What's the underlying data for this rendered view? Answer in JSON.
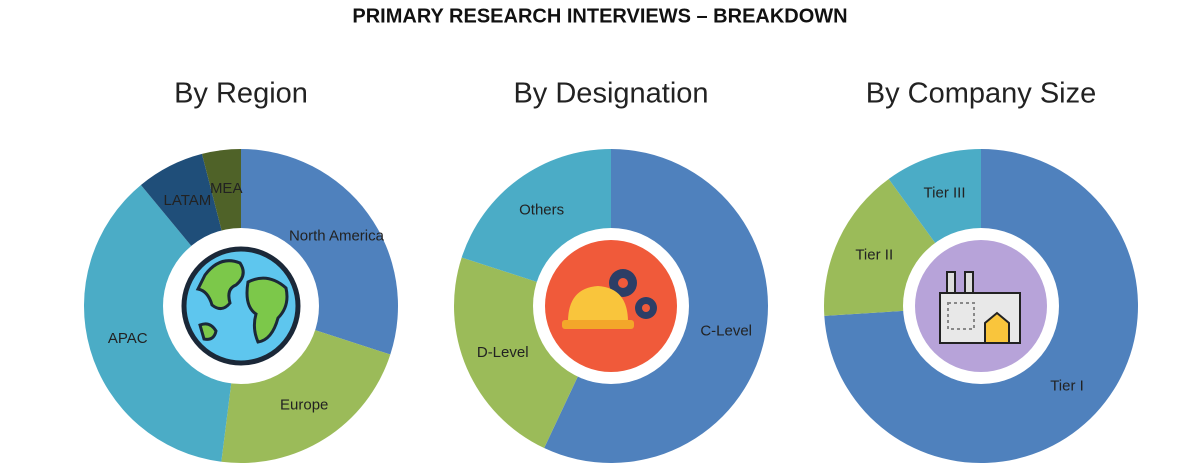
{
  "title": "PRIMARY RESEARCH INTERVIEWS – BREAKDOWN",
  "chart_data": [
    {
      "type": "pie",
      "title": "By Region",
      "categories": [
        "North America",
        "Europe",
        "APAC",
        "LATAM",
        "MEA"
      ],
      "values": [
        30,
        22,
        37,
        7,
        4
      ],
      "colors": [
        "#4f81bd",
        "#9bbb59",
        "#4bacc6",
        "#1f4e79",
        "#4f6228"
      ]
    },
    {
      "type": "pie",
      "title": "By Designation",
      "categories": [
        "C-Level",
        "D-Level",
        "Others"
      ],
      "values": [
        57,
        23,
        20
      ],
      "colors": [
        "#4f81bd",
        "#9bbb59",
        "#4bacc6"
      ]
    },
    {
      "type": "pie",
      "title": "By Company Size",
      "categories": [
        "Tier I",
        "Tier II",
        "Tier III"
      ],
      "values": [
        74,
        16,
        10
      ],
      "colors": [
        "#4f81bd",
        "#9bbb59",
        "#4bacc6"
      ]
    }
  ]
}
